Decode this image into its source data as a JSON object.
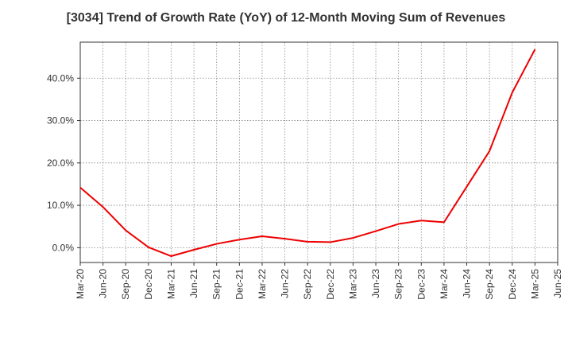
{
  "chart_data": {
    "type": "line",
    "title": "[3034]  Trend of Growth Rate (YoY) of 12-Month Moving Sum of Revenues",
    "xlabel": "",
    "ylabel": "",
    "x_ticks": [
      "Mar-20",
      "Jun-20",
      "Sep-20",
      "Dec-20",
      "Mar-21",
      "Jun-21",
      "Sep-21",
      "Dec-21",
      "Mar-22",
      "Jun-22",
      "Sep-22",
      "Dec-22",
      "Mar-23",
      "Jun-23",
      "Sep-23",
      "Dec-23",
      "Mar-24",
      "Jun-24",
      "Sep-24",
      "Dec-24",
      "Mar-25",
      "Jun-25"
    ],
    "y_ticks": [
      0,
      10,
      20,
      30,
      40
    ],
    "y_tick_labels": [
      "0.0%",
      "10.0%",
      "20.0%",
      "30.0%",
      "40.0%"
    ],
    "ylim": [
      -3.5,
      48.5
    ],
    "grid": true,
    "series": [
      {
        "color": "#ee0000",
        "x": [
          "Mar-20",
          "Jun-20",
          "Sep-20",
          "Dec-20",
          "Mar-21",
          "Jun-21",
          "Sep-21",
          "Dec-21",
          "Mar-22",
          "Jun-22",
          "Sep-22",
          "Dec-22",
          "Mar-23",
          "Jun-23",
          "Sep-23",
          "Dec-23",
          "Mar-24",
          "Jun-24",
          "Sep-24",
          "Dec-24",
          "Mar-25"
        ],
        "values": [
          14.2,
          9.6,
          4.1,
          0.1,
          -2.0,
          -0.5,
          0.9,
          1.9,
          2.7,
          2.1,
          1.4,
          1.3,
          2.3,
          3.9,
          5.6,
          6.4,
          6.0,
          14.4,
          22.8,
          36.6,
          46.8
        ]
      }
    ]
  }
}
